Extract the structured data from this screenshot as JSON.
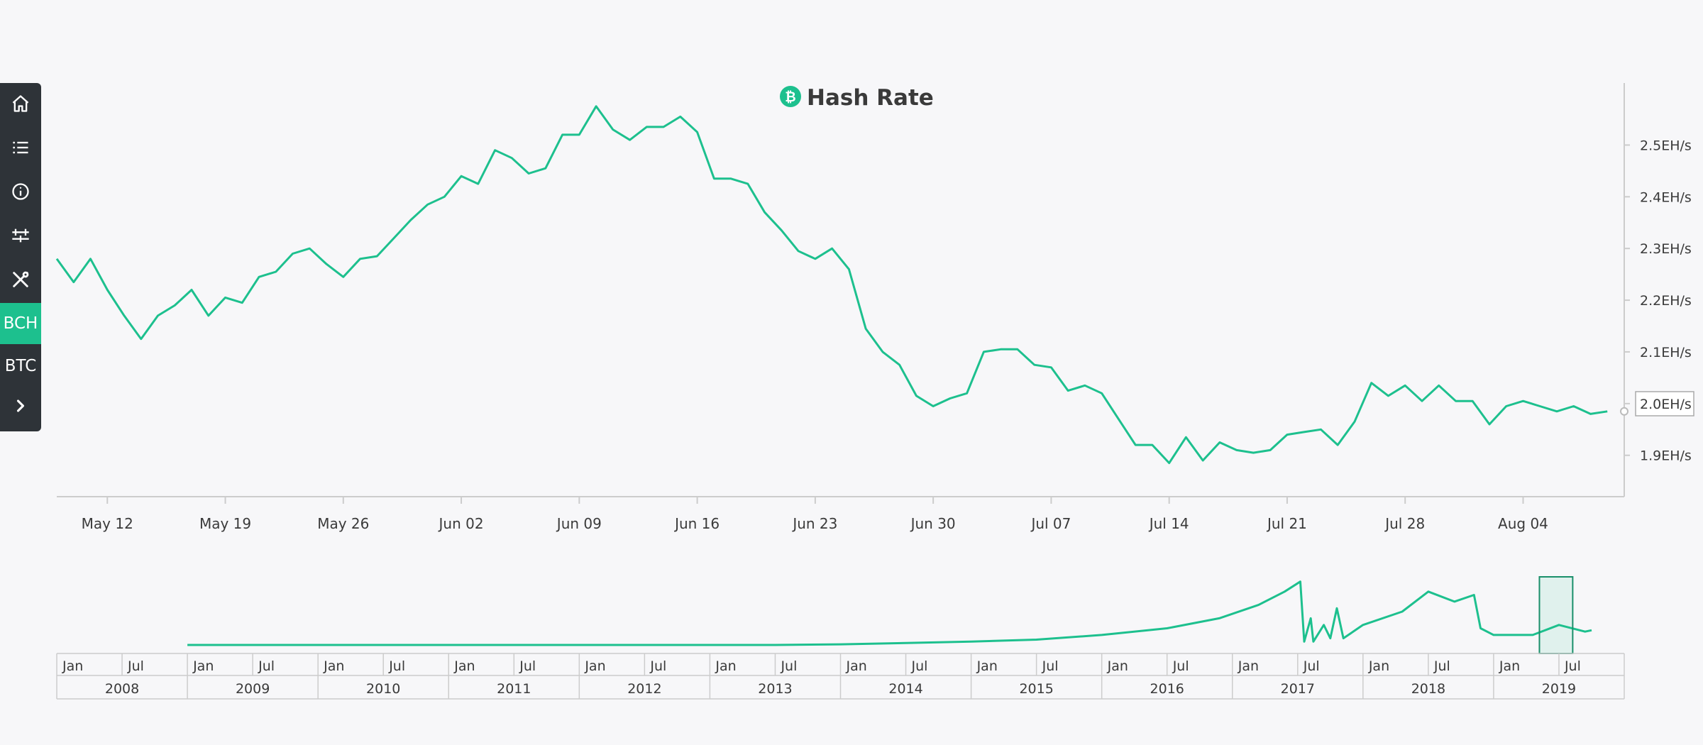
{
  "sidebar": {
    "items": [
      {
        "icon": "home-icon"
      },
      {
        "icon": "list-icon"
      },
      {
        "icon": "info-icon"
      },
      {
        "icon": "sliders-icon"
      },
      {
        "icon": "tools-icon"
      },
      {
        "label": "BCH",
        "active": true
      },
      {
        "label": "BTC",
        "active": false
      },
      {
        "icon": "chevron-right-icon"
      }
    ]
  },
  "colors": {
    "accent": "#1dc08e",
    "sidebar_bg": "#2e3338",
    "background": "#f7f7f9"
  },
  "chart_data": {
    "type": "line",
    "title": "Hash Rate",
    "title_icon": "bitcoin-cash-icon",
    "xlabel": "",
    "ylabel": "",
    "x_range": [
      "2019-05-09",
      "2019-08-10"
    ],
    "x_ticks": [
      "May 12",
      "May 19",
      "May 26",
      "Jun 02",
      "Jun 09",
      "Jun 16",
      "Jun 23",
      "Jun 30",
      "Jul 07",
      "Jul 14",
      "Jul 21",
      "Jul 28",
      "Aug 04"
    ],
    "y_unit": "EH/s",
    "y_ticks": [
      "1.9EH/s",
      "2.0EH/s",
      "2.1EH/s",
      "2.2EH/s",
      "2.3EH/s",
      "2.4EH/s",
      "2.5EH/s"
    ],
    "ylim": [
      1.82,
      2.62
    ],
    "y_axis_position": "right",
    "current_value_label": "2.0EH/s",
    "series": [
      {
        "x_start": "2019-05-09",
        "x_step_days": 1,
        "values": [
          2.28,
          2.235,
          2.28,
          2.22,
          2.17,
          2.125,
          2.17,
          2.19,
          2.22,
          2.17,
          2.205,
          2.195,
          2.245,
          2.255,
          2.29,
          2.3,
          2.27,
          2.245,
          2.28,
          2.285,
          2.32,
          2.355,
          2.385,
          2.4,
          2.44,
          2.425,
          2.49,
          2.475,
          2.445,
          2.455,
          2.52,
          2.52,
          2.575,
          2.53,
          2.51,
          2.535,
          2.535,
          2.555,
          2.525,
          2.435,
          2.435,
          2.425,
          2.37,
          2.335,
          2.295,
          2.28,
          2.3,
          2.26,
          2.145,
          2.1,
          2.075,
          2.015,
          1.995,
          2.01,
          2.02,
          2.1,
          2.105,
          2.105,
          2.075,
          2.07,
          2.025,
          2.035,
          2.02,
          1.97,
          1.92,
          1.92,
          1.885,
          1.935,
          1.89,
          1.925,
          1.91,
          1.905,
          1.91,
          1.94,
          1.945,
          1.95,
          1.92,
          1.965,
          2.04,
          2.015,
          2.035,
          2.005,
          2.035,
          2.005,
          2.005,
          1.96,
          1.995,
          2.005,
          1.995,
          1.985,
          1.995,
          1.98,
          1.985
        ]
      }
    ],
    "navigator": {
      "range": [
        "2008-01",
        "2019-12"
      ],
      "month_labels": [
        "Jan",
        "Jul"
      ],
      "years": [
        "2008",
        "2009",
        "2010",
        "2011",
        "2012",
        "2013",
        "2014",
        "2015",
        "2016",
        "2017",
        "2018",
        "2019"
      ],
      "selection": [
        "2019-05-09",
        "2019-08-10"
      ],
      "overview_series": [
        {
          "x": 2009.0,
          "y": 0.0
        },
        {
          "x": 2013.5,
          "y": 0.0
        },
        {
          "x": 2014.0,
          "y": 0.01
        },
        {
          "x": 2014.5,
          "y": 0.03
        },
        {
          "x": 2015.0,
          "y": 0.05
        },
        {
          "x": 2015.5,
          "y": 0.08
        },
        {
          "x": 2016.0,
          "y": 0.15
        },
        {
          "x": 2016.5,
          "y": 0.25
        },
        {
          "x": 2016.9,
          "y": 0.4
        },
        {
          "x": 2017.2,
          "y": 0.6
        },
        {
          "x": 2017.4,
          "y": 0.8
        },
        {
          "x": 2017.52,
          "y": 0.95
        },
        {
          "x": 2017.55,
          "y": 0.05
        },
        {
          "x": 2017.6,
          "y": 0.4
        },
        {
          "x": 2017.62,
          "y": 0.05
        },
        {
          "x": 2017.7,
          "y": 0.3
        },
        {
          "x": 2017.75,
          "y": 0.1
        },
        {
          "x": 2017.8,
          "y": 0.55
        },
        {
          "x": 2017.85,
          "y": 0.1
        },
        {
          "x": 2018.0,
          "y": 0.3
        },
        {
          "x": 2018.3,
          "y": 0.5
        },
        {
          "x": 2018.5,
          "y": 0.8
        },
        {
          "x": 2018.7,
          "y": 0.65
        },
        {
          "x": 2018.85,
          "y": 0.75
        },
        {
          "x": 2018.9,
          "y": 0.25
        },
        {
          "x": 2019.0,
          "y": 0.15
        },
        {
          "x": 2019.3,
          "y": 0.15
        },
        {
          "x": 2019.5,
          "y": 0.3
        },
        {
          "x": 2019.7,
          "y": 0.2
        },
        {
          "x": 2019.75,
          "y": 0.22
        }
      ]
    }
  }
}
